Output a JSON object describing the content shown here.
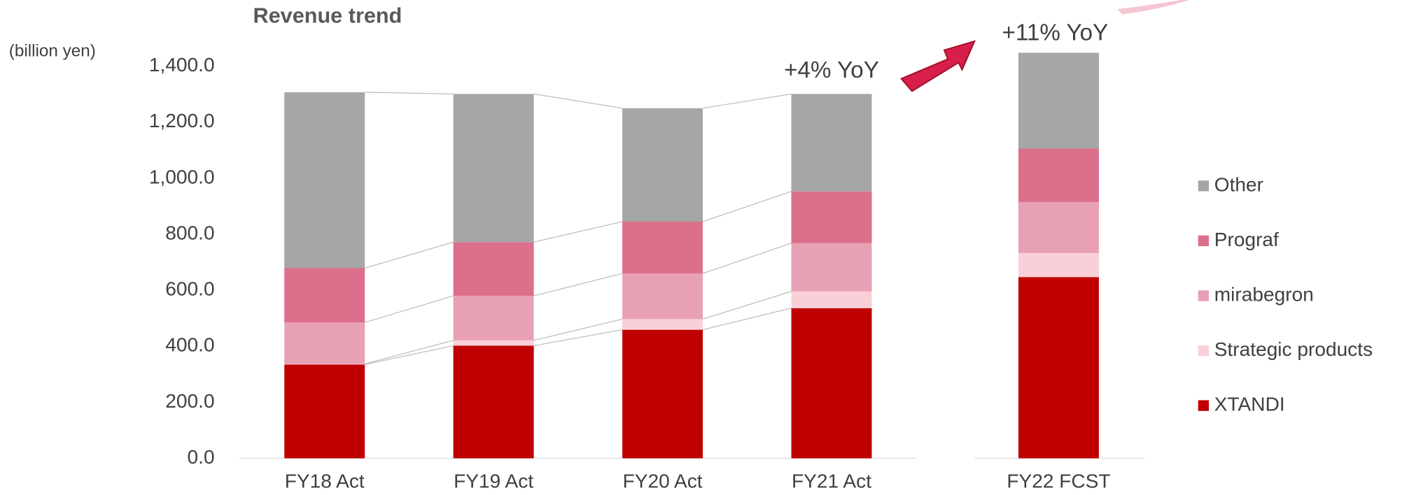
{
  "chart_data": {
    "type": "stacked_bar",
    "title": "Revenue trend",
    "y_label": "(billion yen)",
    "categories": [
      "FY18 Act",
      "FY19 Act",
      "FY20 Act",
      "FY21 Act",
      "FY22 FCST"
    ],
    "series": [
      {
        "name": "XTANDI",
        "color": "#c00000",
        "values": [
          335,
          402,
          459,
          536,
          647
        ]
      },
      {
        "name": "Strategic products",
        "color": "#f9d0d8",
        "values": [
          2,
          19,
          38,
          60,
          86
        ]
      },
      {
        "name": "mirabegron",
        "color": "#e8a0b4",
        "values": [
          148,
          159,
          163,
          172,
          182
        ]
      },
      {
        "name": "Prograf",
        "color": "#db6f8c",
        "values": [
          194,
          192,
          185,
          185,
          191
        ]
      },
      {
        "name": "Other",
        "color": "#a6a6a6",
        "values": [
          628,
          529,
          405,
          348,
          342
        ]
      }
    ],
    "ylim": [
      0,
      1400
    ],
    "yticks": [
      {
        "value": 0,
        "label": "0.0"
      },
      {
        "value": 200,
        "label": "200.0"
      },
      {
        "value": 400,
        "label": "400.0"
      },
      {
        "value": 600,
        "label": "600.0"
      },
      {
        "value": 800,
        "label": "800.0"
      },
      {
        "value": 1000,
        "label": "1,000.0"
      },
      {
        "value": 1200,
        "label": "1,200.0"
      },
      {
        "value": 1400,
        "label": "1,400.0"
      }
    ],
    "annotations": [
      "+4% YoY",
      "+11% YoY"
    ],
    "legend": "right"
  }
}
